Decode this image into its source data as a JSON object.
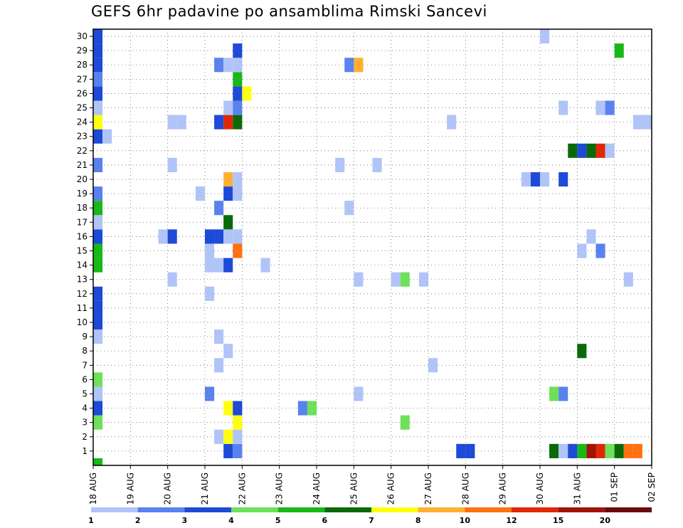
{
  "chart_data": {
    "type": "heatmap",
    "title": "GEFS 6hr padavine po ansamblima Rimski Sancevi",
    "x_tick_labels": [
      "18 AUG",
      "19 AUG",
      "20 AUG",
      "21 AUG",
      "22 AUG",
      "23 AUG",
      "24 AUG",
      "25 AUG",
      "26 AUG",
      "27 AUG",
      "28 AUG",
      "29 AUG",
      "30 AUG",
      "31 AUG",
      "01 SEP",
      "02 SEP"
    ],
    "x_range_steps": [
      0,
      60
    ],
    "y_tick_labels": [
      "1",
      "2",
      "3",
      "4",
      "5",
      "6",
      "7",
      "8",
      "9",
      "10",
      "11",
      "12",
      "13",
      "14",
      "15",
      "16",
      "17",
      "18",
      "19",
      "20",
      "21",
      "22",
      "23",
      "24",
      "25",
      "26",
      "27",
      "28",
      "29",
      "30"
    ],
    "y_range": [
      0,
      30
    ],
    "grid": true,
    "color_scale": {
      "colors": [
        "#b0c4f8",
        "#5a82ee",
        "#1e4ad8",
        "#6ee05a",
        "#18b818",
        "#0a6a0a",
        "#ffff10",
        "#ffb030",
        "#ff7010",
        "#e02808",
        "#a01408",
        "#6a0a0a"
      ],
      "labels": [
        "1",
        "2",
        "3",
        "4",
        "5",
        "6",
        "7",
        "8",
        "10",
        "12",
        "15",
        "20"
      ]
    },
    "cells": [
      {
        "m": 0,
        "t": 0,
        "c": 4
      },
      {
        "m": 1,
        "t": 14,
        "c": 2
      },
      {
        "m": 1,
        "t": 15,
        "c": 1
      },
      {
        "m": 1,
        "t": 39,
        "c": 2
      },
      {
        "m": 1,
        "t": 40,
        "c": 2
      },
      {
        "m": 1,
        "t": 49,
        "c": 5
      },
      {
        "m": 1,
        "t": 50,
        "c": 0
      },
      {
        "m": 1,
        "t": 51,
        "c": 2
      },
      {
        "m": 1,
        "t": 52,
        "c": 4
      },
      {
        "m": 1,
        "t": 53,
        "c": 10
      },
      {
        "m": 1,
        "t": 54,
        "c": 9
      },
      {
        "m": 1,
        "t": 55,
        "c": 3
      },
      {
        "m": 1,
        "t": 56,
        "c": 5
      },
      {
        "m": 1,
        "t": 57,
        "c": 8
      },
      {
        "m": 1,
        "t": 58,
        "c": 8
      },
      {
        "m": 2,
        "t": 13,
        "c": 0
      },
      {
        "m": 2,
        "t": 14,
        "c": 6
      },
      {
        "m": 2,
        "t": 15,
        "c": 0
      },
      {
        "m": 3,
        "t": 0,
        "c": 3
      },
      {
        "m": 3,
        "t": 15,
        "c": 6
      },
      {
        "m": 3,
        "t": 33,
        "c": 3
      },
      {
        "m": 4,
        "t": 0,
        "c": 2
      },
      {
        "m": 4,
        "t": 14,
        "c": 6
      },
      {
        "m": 4,
        "t": 15,
        "c": 2
      },
      {
        "m": 4,
        "t": 22,
        "c": 1
      },
      {
        "m": 4,
        "t": 23,
        "c": 3
      },
      {
        "m": 5,
        "t": 0,
        "c": 0
      },
      {
        "m": 5,
        "t": 12,
        "c": 1
      },
      {
        "m": 5,
        "t": 28,
        "c": 0
      },
      {
        "m": 5,
        "t": 49,
        "c": 3
      },
      {
        "m": 5,
        "t": 50,
        "c": 1
      },
      {
        "m": 6,
        "t": 0,
        "c": 3
      },
      {
        "m": 7,
        "t": 13,
        "c": 0
      },
      {
        "m": 7,
        "t": 36,
        "c": 0
      },
      {
        "m": 8,
        "t": 14,
        "c": 0
      },
      {
        "m": 8,
        "t": 52,
        "c": 5
      },
      {
        "m": 9,
        "t": 0,
        "c": 0
      },
      {
        "m": 9,
        "t": 13,
        "c": 0
      },
      {
        "m": 10,
        "t": 0,
        "c": 2
      },
      {
        "m": 11,
        "t": 0,
        "c": 2
      },
      {
        "m": 12,
        "t": 0,
        "c": 2
      },
      {
        "m": 12,
        "t": 12,
        "c": 0
      },
      {
        "m": 13,
        "t": 8,
        "c": 0
      },
      {
        "m": 13,
        "t": 28,
        "c": 0
      },
      {
        "m": 13,
        "t": 32,
        "c": 0
      },
      {
        "m": 13,
        "t": 33,
        "c": 3
      },
      {
        "m": 13,
        "t": 35,
        "c": 0
      },
      {
        "m": 13,
        "t": 57,
        "c": 0
      },
      {
        "m": 14,
        "t": 0,
        "c": 4
      },
      {
        "m": 14,
        "t": 12,
        "c": 0
      },
      {
        "m": 14,
        "t": 13,
        "c": 0
      },
      {
        "m": 14,
        "t": 14,
        "c": 2
      },
      {
        "m": 14,
        "t": 18,
        "c": 0
      },
      {
        "m": 15,
        "t": 0,
        "c": 4
      },
      {
        "m": 15,
        "t": 12,
        "c": 0
      },
      {
        "m": 15,
        "t": 15,
        "c": 8
      },
      {
        "m": 15,
        "t": 52,
        "c": 0
      },
      {
        "m": 15,
        "t": 54,
        "c": 1
      },
      {
        "m": 16,
        "t": 0,
        "c": 2
      },
      {
        "m": 16,
        "t": 7,
        "c": 0
      },
      {
        "m": 16,
        "t": 8,
        "c": 2
      },
      {
        "m": 16,
        "t": 12,
        "c": 2
      },
      {
        "m": 16,
        "t": 13,
        "c": 2
      },
      {
        "m": 16,
        "t": 14,
        "c": 0
      },
      {
        "m": 16,
        "t": 15,
        "c": 0
      },
      {
        "m": 16,
        "t": 53,
        "c": 0
      },
      {
        "m": 17,
        "t": 0,
        "c": 0
      },
      {
        "m": 17,
        "t": 14,
        "c": 5
      },
      {
        "m": 18,
        "t": 0,
        "c": 4
      },
      {
        "m": 18,
        "t": 13,
        "c": 1
      },
      {
        "m": 18,
        "t": 27,
        "c": 0
      },
      {
        "m": 19,
        "t": 0,
        "c": 1
      },
      {
        "m": 19,
        "t": 11,
        "c": 0
      },
      {
        "m": 19,
        "t": 14,
        "c": 2
      },
      {
        "m": 19,
        "t": 15,
        "c": 0
      },
      {
        "m": 20,
        "t": 14,
        "c": 7
      },
      {
        "m": 20,
        "t": 15,
        "c": 0
      },
      {
        "m": 20,
        "t": 46,
        "c": 0
      },
      {
        "m": 20,
        "t": 47,
        "c": 2
      },
      {
        "m": 20,
        "t": 48,
        "c": 0
      },
      {
        "m": 20,
        "t": 50,
        "c": 2
      },
      {
        "m": 21,
        "t": 0,
        "c": 1
      },
      {
        "m": 21,
        "t": 8,
        "c": 0
      },
      {
        "m": 21,
        "t": 26,
        "c": 0
      },
      {
        "m": 21,
        "t": 30,
        "c": 0
      },
      {
        "m": 22,
        "t": 51,
        "c": 5
      },
      {
        "m": 22,
        "t": 52,
        "c": 2
      },
      {
        "m": 22,
        "t": 53,
        "c": 5
      },
      {
        "m": 22,
        "t": 54,
        "c": 9
      },
      {
        "m": 22,
        "t": 55,
        "c": 0
      },
      {
        "m": 23,
        "t": 0,
        "c": 2
      },
      {
        "m": 23,
        "t": 1,
        "c": 0
      },
      {
        "m": 24,
        "t": 0,
        "c": 6
      },
      {
        "m": 24,
        "t": 8,
        "c": 0
      },
      {
        "m": 24,
        "t": 9,
        "c": 0
      },
      {
        "m": 24,
        "t": 13,
        "c": 2
      },
      {
        "m": 24,
        "t": 14,
        "c": 9
      },
      {
        "m": 24,
        "t": 15,
        "c": 5
      },
      {
        "m": 24,
        "t": 38,
        "c": 0
      },
      {
        "m": 24,
        "t": 58,
        "c": 0
      },
      {
        "m": 24,
        "t": 59,
        "c": 0
      },
      {
        "m": 25,
        "t": 0,
        "c": 0
      },
      {
        "m": 25,
        "t": 14,
        "c": 0
      },
      {
        "m": 25,
        "t": 15,
        "c": 1
      },
      {
        "m": 25,
        "t": 50,
        "c": 0
      },
      {
        "m": 25,
        "t": 54,
        "c": 0
      },
      {
        "m": 25,
        "t": 55,
        "c": 1
      },
      {
        "m": 26,
        "t": 0,
        "c": 2
      },
      {
        "m": 26,
        "t": 15,
        "c": 2
      },
      {
        "m": 26,
        "t": 16,
        "c": 6
      },
      {
        "m": 27,
        "t": 0,
        "c": 1
      },
      {
        "m": 27,
        "t": 15,
        "c": 4
      },
      {
        "m": 28,
        "t": 0,
        "c": 2
      },
      {
        "m": 28,
        "t": 13,
        "c": 1
      },
      {
        "m": 28,
        "t": 14,
        "c": 0
      },
      {
        "m": 28,
        "t": 15,
        "c": 0
      },
      {
        "m": 28,
        "t": 27,
        "c": 1
      },
      {
        "m": 28,
        "t": 28,
        "c": 7
      },
      {
        "m": 29,
        "t": 0,
        "c": 2
      },
      {
        "m": 29,
        "t": 15,
        "c": 2
      },
      {
        "m": 29,
        "t": 56,
        "c": 4
      },
      {
        "m": 30,
        "t": 0,
        "c": 2
      },
      {
        "m": 30,
        "t": 48,
        "c": 0
      }
    ]
  }
}
